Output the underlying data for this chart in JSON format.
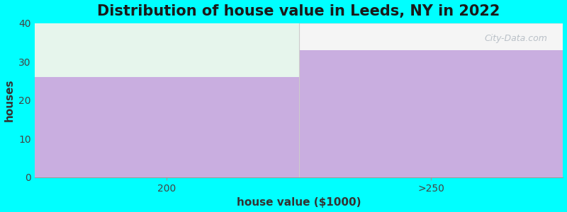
{
  "title": "Distribution of house value in Leeds, NY in 2022",
  "xlabel": "house value ($1000)",
  "ylabel": "houses",
  "categories": [
    "200",
    ">250"
  ],
  "values": [
    26,
    33
  ],
  "bar_color": "#c9aee0",
  "background_color": "#00ffff",
  "plot_bg_color": "#f5f5f5",
  "ylim": [
    0,
    40
  ],
  "yticks": [
    0,
    10,
    20,
    30,
    40
  ],
  "title_fontsize": 15,
  "label_fontsize": 11,
  "tick_fontsize": 10,
  "watermark": "City-Data.com",
  "highlight_color": "#e6f5ec",
  "right_top_color": "#f0f0f0"
}
